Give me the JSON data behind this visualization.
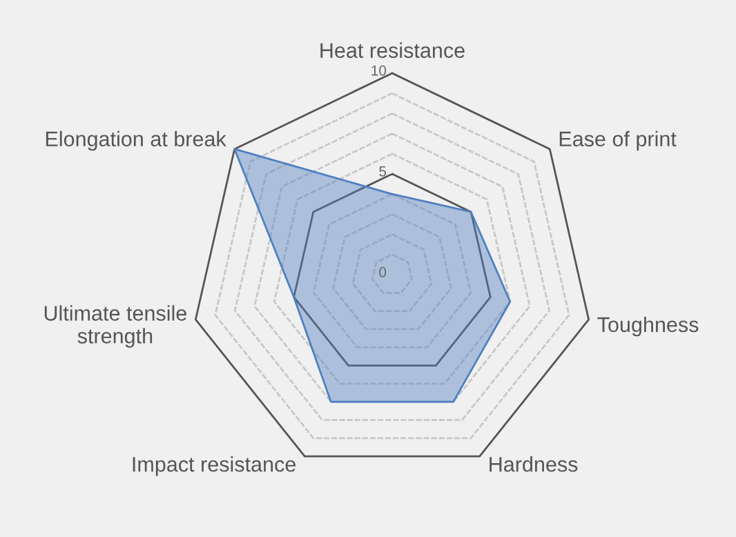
{
  "chart_data": {
    "type": "radar",
    "categories": [
      "Heat resistance",
      "Ease of print",
      "Toughness",
      "Hardness",
      "Impact resistance",
      "Ultimate tensile\nstrength",
      "Elongation at break"
    ],
    "series": [
      {
        "color": "#4f7fc0",
        "values": [
          4,
          5,
          6,
          7,
          7,
          5,
          10
        ]
      }
    ],
    "ylim": [
      0,
      10
    ],
    "yticks": [
      0,
      5,
      10
    ],
    "grid": true
  }
}
